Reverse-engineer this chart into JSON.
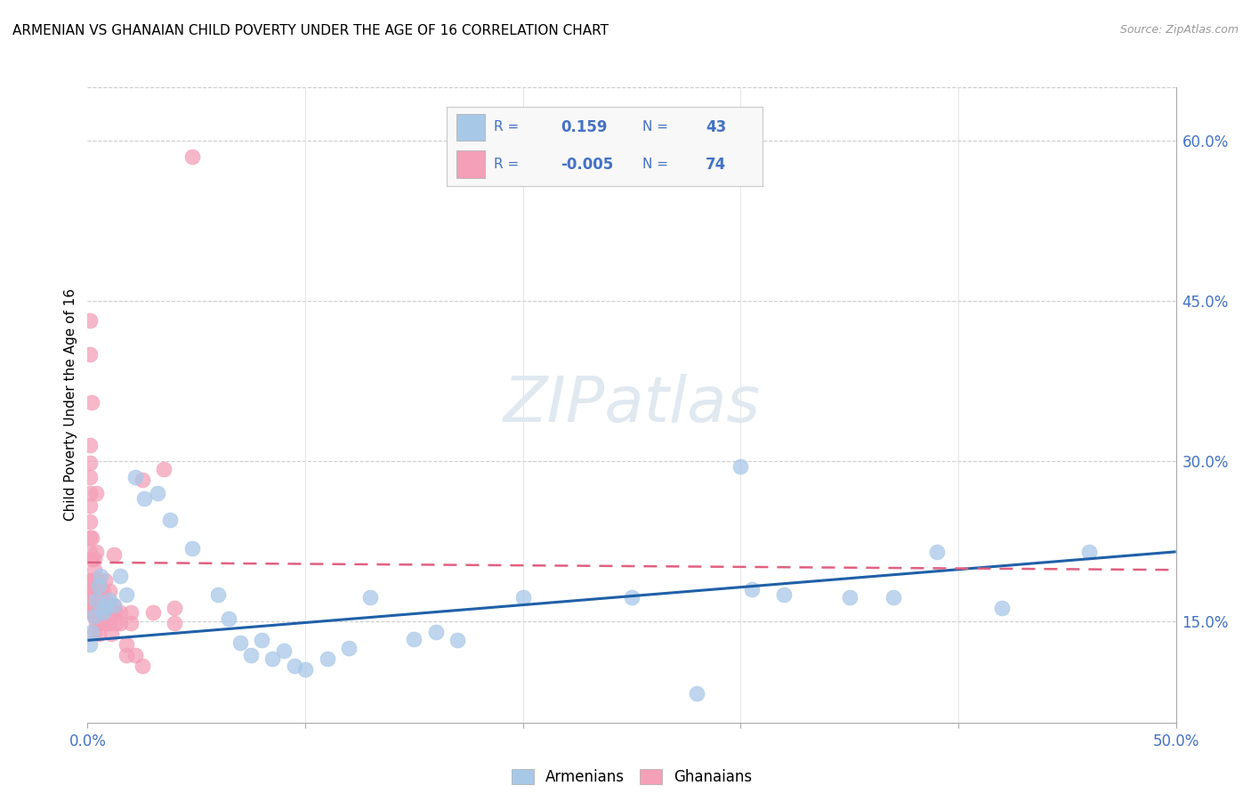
{
  "title": "ARMENIAN VS GHANAIAN CHILD POVERTY UNDER THE AGE OF 16 CORRELATION CHART",
  "source": "Source: ZipAtlas.com",
  "ylabel": "Child Poverty Under the Age of 16",
  "xlim": [
    0.0,
    0.5
  ],
  "ylim": [
    0.055,
    0.65
  ],
  "yticks_right": [
    0.15,
    0.3,
    0.45,
    0.6
  ],
  "ytick_right_labels": [
    "15.0%",
    "30.0%",
    "45.0%",
    "60.0%"
  ],
  "armenian_color": "#a8c8e8",
  "ghanaian_color": "#f4a0b8",
  "armenian_line_color": "#2060a8",
  "ghanaian_line_color": "#e06080",
  "legend_text_color": "#4472c4",
  "armenian_line": [
    0.0,
    0.132,
    0.5,
    0.215
  ],
  "ghanaian_line": [
    0.0,
    0.205,
    0.5,
    0.198
  ],
  "armenian_points": [
    [
      0.001,
      0.128
    ],
    [
      0.002,
      0.14
    ],
    [
      0.003,
      0.155
    ],
    [
      0.004,
      0.17
    ],
    [
      0.005,
      0.183
    ],
    [
      0.006,
      0.192
    ],
    [
      0.007,
      0.158
    ],
    [
      0.008,
      0.163
    ],
    [
      0.01,
      0.17
    ],
    [
      0.012,
      0.165
    ],
    [
      0.015,
      0.192
    ],
    [
      0.018,
      0.175
    ],
    [
      0.022,
      0.285
    ],
    [
      0.026,
      0.265
    ],
    [
      0.032,
      0.27
    ],
    [
      0.038,
      0.245
    ],
    [
      0.048,
      0.218
    ],
    [
      0.06,
      0.175
    ],
    [
      0.065,
      0.152
    ],
    [
      0.07,
      0.13
    ],
    [
      0.075,
      0.118
    ],
    [
      0.08,
      0.132
    ],
    [
      0.085,
      0.115
    ],
    [
      0.09,
      0.122
    ],
    [
      0.095,
      0.108
    ],
    [
      0.1,
      0.105
    ],
    [
      0.11,
      0.115
    ],
    [
      0.12,
      0.125
    ],
    [
      0.13,
      0.172
    ],
    [
      0.15,
      0.133
    ],
    [
      0.16,
      0.14
    ],
    [
      0.17,
      0.132
    ],
    [
      0.2,
      0.172
    ],
    [
      0.25,
      0.172
    ],
    [
      0.28,
      0.082
    ],
    [
      0.3,
      0.295
    ],
    [
      0.32,
      0.175
    ],
    [
      0.35,
      0.172
    ],
    [
      0.37,
      0.172
    ],
    [
      0.39,
      0.215
    ],
    [
      0.42,
      0.162
    ],
    [
      0.46,
      0.215
    ],
    [
      0.305,
      0.18
    ]
  ],
  "ghanaian_points": [
    [
      0.001,
      0.158
    ],
    [
      0.001,
      0.17
    ],
    [
      0.001,
      0.178
    ],
    [
      0.001,
      0.188
    ],
    [
      0.001,
      0.215
    ],
    [
      0.001,
      0.228
    ],
    [
      0.001,
      0.243
    ],
    [
      0.001,
      0.258
    ],
    [
      0.001,
      0.27
    ],
    [
      0.001,
      0.285
    ],
    [
      0.001,
      0.298
    ],
    [
      0.001,
      0.315
    ],
    [
      0.001,
      0.4
    ],
    [
      0.001,
      0.432
    ],
    [
      0.002,
      0.158
    ],
    [
      0.002,
      0.168
    ],
    [
      0.002,
      0.178
    ],
    [
      0.002,
      0.188
    ],
    [
      0.002,
      0.208
    ],
    [
      0.002,
      0.228
    ],
    [
      0.002,
      0.355
    ],
    [
      0.003,
      0.14
    ],
    [
      0.003,
      0.158
    ],
    [
      0.003,
      0.168
    ],
    [
      0.003,
      0.178
    ],
    [
      0.003,
      0.188
    ],
    [
      0.003,
      0.198
    ],
    [
      0.003,
      0.208
    ],
    [
      0.004,
      0.148
    ],
    [
      0.004,
      0.158
    ],
    [
      0.004,
      0.168
    ],
    [
      0.004,
      0.188
    ],
    [
      0.004,
      0.215
    ],
    [
      0.004,
      0.27
    ],
    [
      0.005,
      0.138
    ],
    [
      0.005,
      0.148
    ],
    [
      0.005,
      0.158
    ],
    [
      0.005,
      0.168
    ],
    [
      0.005,
      0.178
    ],
    [
      0.005,
      0.188
    ],
    [
      0.006,
      0.148
    ],
    [
      0.006,
      0.158
    ],
    [
      0.006,
      0.168
    ],
    [
      0.006,
      0.178
    ],
    [
      0.007,
      0.153
    ],
    [
      0.007,
      0.163
    ],
    [
      0.007,
      0.178
    ],
    [
      0.008,
      0.158
    ],
    [
      0.008,
      0.168
    ],
    [
      0.008,
      0.188
    ],
    [
      0.009,
      0.148
    ],
    [
      0.009,
      0.165
    ],
    [
      0.01,
      0.148
    ],
    [
      0.01,
      0.158
    ],
    [
      0.01,
      0.165
    ],
    [
      0.01,
      0.178
    ],
    [
      0.011,
      0.138
    ],
    [
      0.011,
      0.158
    ],
    [
      0.012,
      0.158
    ],
    [
      0.012,
      0.165
    ],
    [
      0.012,
      0.212
    ],
    [
      0.013,
      0.148
    ],
    [
      0.013,
      0.158
    ],
    [
      0.015,
      0.148
    ],
    [
      0.015,
      0.158
    ],
    [
      0.018,
      0.118
    ],
    [
      0.018,
      0.128
    ],
    [
      0.02,
      0.148
    ],
    [
      0.02,
      0.158
    ],
    [
      0.022,
      0.118
    ],
    [
      0.025,
      0.108
    ],
    [
      0.025,
      0.282
    ],
    [
      0.03,
      0.158
    ],
    [
      0.035,
      0.292
    ],
    [
      0.04,
      0.148
    ],
    [
      0.04,
      0.162
    ],
    [
      0.048,
      0.585
    ]
  ]
}
